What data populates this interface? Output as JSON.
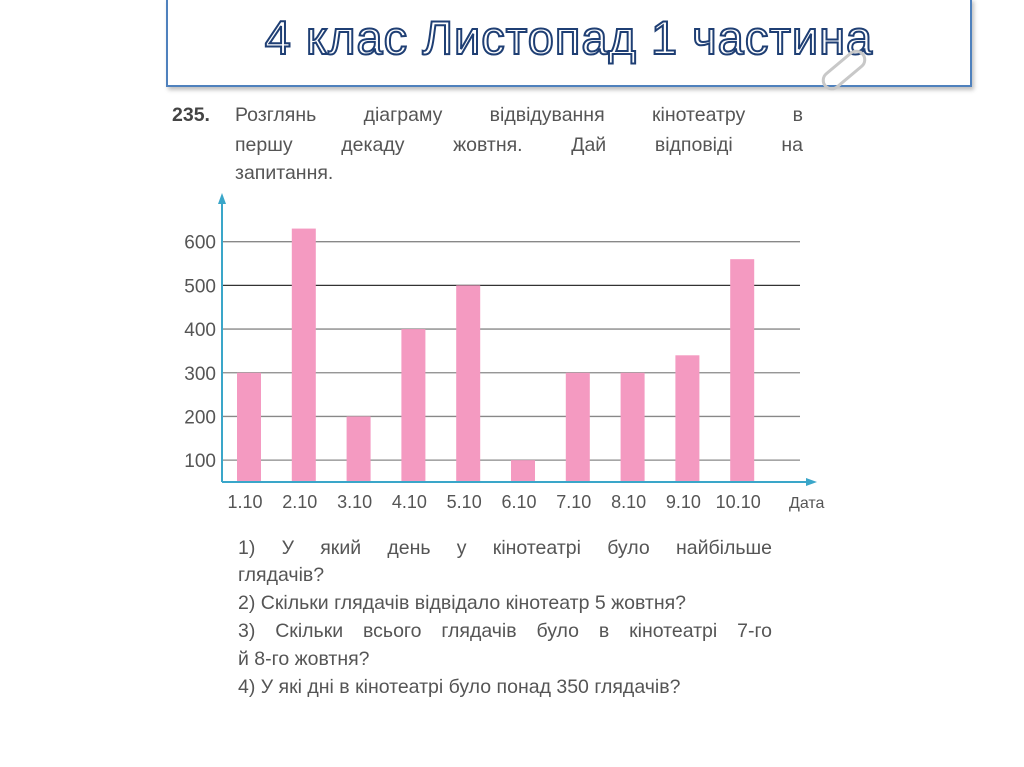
{
  "slide_title": "4 клас Листопад 1 частина",
  "task": {
    "number": "235.",
    "lines": [
      "Розглянь діаграму відвідування кінотеатру в",
      "першу декаду жовтня. Дай відповіді на",
      "запитання."
    ]
  },
  "questions": [
    "1) У який день у кінотеатрі було найбільше",
    "глядачів?",
    "2) Скільки глядачів відвідало кінотеатр 5 жовтня?",
    "3) Скільки всього глядачів було в кінотеатрі 7-го",
    "й 8-го жовтня?",
    "4) У які дні в кінотеатрі було понад 350 глядачів?"
  ],
  "chart_data": {
    "type": "bar",
    "categories": [
      "1.10",
      "2.10",
      "3.10",
      "4.10",
      "5.10",
      "6.10",
      "7.10",
      "8.10",
      "9.10",
      "10.10"
    ],
    "values": [
      300,
      630,
      200,
      400,
      500,
      100,
      300,
      300,
      340,
      560
    ],
    "xlabel": "Дата",
    "ylabel": "",
    "yticks": [
      100,
      200,
      300,
      400,
      500,
      600
    ],
    "ylim": [
      50,
      700
    ],
    "grid": true,
    "bar_color": "#f49ac1",
    "axis_color": "#3aa6c9"
  }
}
